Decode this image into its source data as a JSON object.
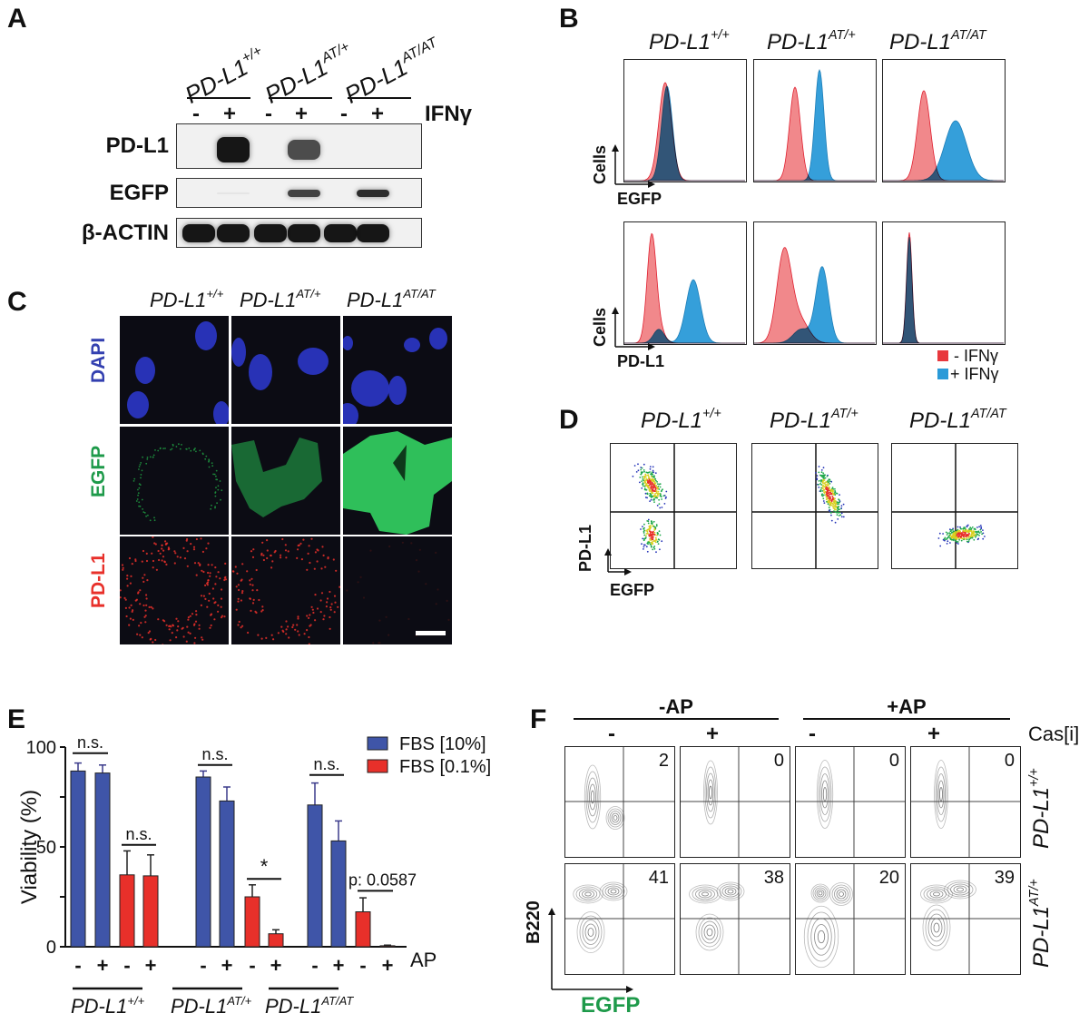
{
  "figure": {
    "panels": {
      "A": {
        "letter": "A",
        "genotypes": [
          {
            "base": "PD-L1",
            "sup": "+/+"
          },
          {
            "base": "PD-L1",
            "sup": "AT/+"
          },
          {
            "base": "PD-L1",
            "sup": "AT/AT"
          }
        ],
        "treatment_label": "IFNγ",
        "lane_signs": [
          "-",
          "+",
          "-",
          "+",
          "-",
          "+"
        ],
        "blot_rows": [
          {
            "label": "PD-L1",
            "band_intensity": [
              0,
              1.0,
              0,
              0.75,
              0,
              0
            ]
          },
          {
            "label": "EGFP",
            "band_intensity": [
              0,
              0.05,
              0,
              0.8,
              0,
              0.9
            ]
          },
          {
            "label": "β-ACTIN",
            "band_intensity": [
              1,
              1,
              1,
              1,
              1,
              1
            ]
          }
        ]
      },
      "B": {
        "letter": "B",
        "genotypes": [
          {
            "base": "PD-L1",
            "sup": "+/+"
          },
          {
            "base": "PD-L1",
            "sup": "AT/+"
          },
          {
            "base": "PD-L1",
            "sup": "AT/AT"
          }
        ],
        "rows": [
          {
            "y_axis": "Cells",
            "x_axis": "EGFP"
          },
          {
            "y_axis": "Cells",
            "x_axis": "PD-L1"
          }
        ],
        "legend": [
          {
            "label": "- IFNγ",
            "color": "#E8383D"
          },
          {
            "label": "+ IFNγ",
            "color": "#2A9AD8"
          }
        ]
      },
      "C": {
        "letter": "C",
        "genotypes": [
          {
            "base": "PD-L1",
            "sup": "+/+"
          },
          {
            "base": "PD-L1",
            "sup": "AT/+"
          },
          {
            "base": "PD-L1",
            "sup": "AT/AT"
          }
        ],
        "channels": [
          {
            "label": "DAPI",
            "color": "#3340B0"
          },
          {
            "label": "EGFP",
            "color": "#1E9A4A"
          },
          {
            "label": "PD-L1",
            "color": "#E8302A"
          }
        ]
      },
      "D": {
        "letter": "D",
        "genotypes": [
          {
            "base": "PD-L1",
            "sup": "+/+"
          },
          {
            "base": "PD-L1",
            "sup": "AT/+"
          },
          {
            "base": "PD-L1",
            "sup": "AT/AT"
          }
        ],
        "y_axis": "PD-L1",
        "x_axis": "EGFP"
      },
      "E": {
        "letter": "E",
        "legend": [
          {
            "label": "FBS [10%]",
            "color": "#3F55A8"
          },
          {
            "label": "FBS [0.1%]",
            "color": "#E8302A"
          }
        ],
        "treatment_label": "AP",
        "significance": [
          "n.s.",
          "n.s.",
          "n.s.",
          "*",
          "n.s.",
          "p: 0.0587"
        ]
      },
      "F": {
        "letter": "F",
        "conditions": [
          "-AP",
          "+AP"
        ],
        "cas_label": "Cas[i]",
        "cas_signs": [
          "-",
          "+",
          "-",
          "+"
        ],
        "row_genotypes": [
          {
            "base": "PD-L1",
            "sup": "+/+"
          },
          {
            "base": "PD-L1",
            "sup": "AT/+"
          }
        ],
        "quadrant_values": [
          [
            "2",
            "0",
            "0",
            "0"
          ],
          [
            "41",
            "38",
            "20",
            "39"
          ]
        ],
        "y_axis": "B220",
        "x_axis": "EGFP",
        "x_axis_color": "#1E9A4A"
      }
    }
  },
  "chart_data": {
    "type": "bar",
    "title": "",
    "xlabel": "",
    "ylabel": "Viability (%)",
    "ylim": [
      0,
      100
    ],
    "yticks": [
      0,
      50,
      100
    ],
    "grid": false,
    "legend_position": "top-right",
    "groups": [
      "PD-L1+/+",
      "PD-L1AT/+",
      "PD-L1AT/AT"
    ],
    "categories": [
      "-",
      "+",
      "-",
      "+",
      "-",
      "+",
      "-",
      "+",
      "-",
      "+",
      "-",
      "+"
    ],
    "x_row_label": "AP",
    "series": [
      {
        "name": "FBS [10%]",
        "color": "#3F55A8",
        "bars": [
          {
            "group": "PD-L1+/+",
            "AP": "-",
            "value": 88,
            "error": 4
          },
          {
            "group": "PD-L1+/+",
            "AP": "+",
            "value": 87,
            "error": 4
          },
          {
            "group": "PD-L1AT/+",
            "AP": "-",
            "value": 85,
            "error": 3
          },
          {
            "group": "PD-L1AT/+",
            "AP": "+",
            "value": 73,
            "error": 7
          },
          {
            "group": "PD-L1AT/AT",
            "AP": "-",
            "value": 71,
            "error": 11
          },
          {
            "group": "PD-L1AT/AT",
            "AP": "+",
            "value": 53,
            "error": 10
          }
        ]
      },
      {
        "name": "FBS [0.1%]",
        "color": "#E8302A",
        "bars": [
          {
            "group": "PD-L1+/+",
            "AP": "-",
            "value": 36,
            "error": 12
          },
          {
            "group": "PD-L1+/+",
            "AP": "+",
            "value": 35.5,
            "error": 10.5
          },
          {
            "group": "PD-L1AT/+",
            "AP": "-",
            "value": 25,
            "error": 6
          },
          {
            "group": "PD-L1AT/+",
            "AP": "+",
            "value": 6.5,
            "error": 2
          },
          {
            "group": "PD-L1AT/AT",
            "AP": "-",
            "value": 17.5,
            "error": 7
          },
          {
            "group": "PD-L1AT/AT",
            "AP": "+",
            "value": 0.5,
            "error": 0.3
          }
        ]
      }
    ],
    "annotations": [
      {
        "between": "PD-L1+/+ FBS10 -/+",
        "text": "n.s."
      },
      {
        "between": "PD-L1+/+ FBS0.1 -/+",
        "text": "n.s."
      },
      {
        "between": "PD-L1AT/+ FBS10 -/+",
        "text": "n.s."
      },
      {
        "between": "PD-L1AT/+ FBS0.1 -/+",
        "text": "*"
      },
      {
        "between": "PD-L1AT/AT FBS10 -/+",
        "text": "n.s."
      },
      {
        "between": "PD-L1AT/AT FBS0.1 -/+",
        "text": "p: 0.0587"
      }
    ]
  }
}
